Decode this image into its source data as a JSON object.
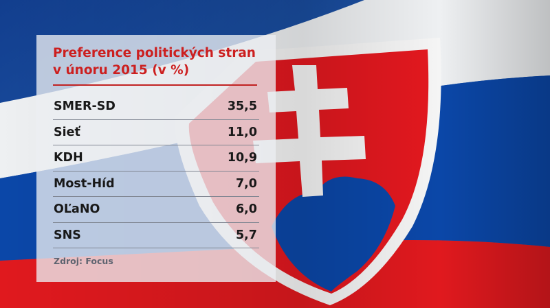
{
  "chart_data": {
    "type": "table",
    "title": "Preference politických stran v únoru 2015 (v %)",
    "title_lines": [
      "Preference politických stran",
      "v únoru 2015 (v %)"
    ],
    "categories": [
      "SMER-SD",
      "Sieť",
      "KDH",
      "Most-Híd",
      "OĽaNO",
      "SNS"
    ],
    "values": [
      35.5,
      11.0,
      10.9,
      7.0,
      6.0,
      5.7
    ],
    "value_labels": [
      "35,5",
      "11,0",
      "10,9",
      "7,0",
      "6,0",
      "5,7"
    ],
    "source": "Zdroj: Focus"
  },
  "colors": {
    "accent_red": "#cc1f1f",
    "flag_blue": "#0b47a8",
    "flag_red": "#e0191e",
    "flag_white": "#f3f3f3"
  }
}
